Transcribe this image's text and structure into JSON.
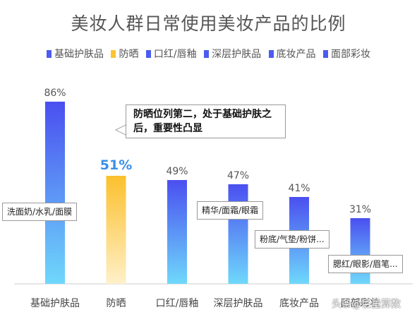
{
  "chart_data": {
    "type": "bar",
    "title": "美妆人群日常使用美妆产品的比例",
    "categories": [
      "基础护肤品",
      "防晒",
      "口红/唇釉",
      "深层护肤品",
      "底妆产品",
      "面部彩妆"
    ],
    "values": [
      86,
      51,
      49,
      47,
      41,
      31
    ],
    "value_labels": [
      "86%",
      "51%",
      "49%",
      "47%",
      "41%",
      "31%"
    ],
    "ylim": [
      0,
      100
    ],
    "grid": false,
    "legend_position": "top",
    "legend": [
      {
        "label": "基础护肤品",
        "color": "#4a5cf0"
      },
      {
        "label": "防晒",
        "color": "#fbc531"
      },
      {
        "label": "口红/唇釉",
        "color": "#4a5cf0"
      },
      {
        "label": "深层护肤品",
        "color": "#4a5cf0"
      },
      {
        "label": "底妆产品",
        "color": "#4a5cf0"
      },
      {
        "label": "面部彩妆",
        "color": "#4a5cf0"
      }
    ],
    "annotations": [
      "防晒位列第二，处于基础护肤之后，重要性凸显",
      "洗面奶/水乳/面膜",
      "精华/面霜/眼霜",
      "粉底/气垫/粉饼...",
      "腮红/眼影/眉笔..."
    ],
    "highlight_category": "防晒"
  },
  "colors": {
    "bar_top": "#4a4ff0",
    "bar_bottom": "#6fd8fb",
    "highlight_top": "#fbc02d",
    "highlight_bottom": "#fff0c8",
    "highlight_label": "#3a8fe8"
  },
  "watermark": "头条@巨量算数"
}
